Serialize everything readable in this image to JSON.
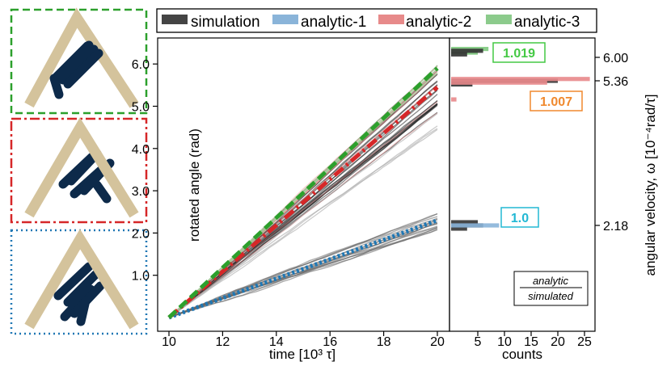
{
  "chart_data": [
    {
      "type": "line",
      "xlabel": "time [10³ τ]",
      "ylabel": "rotated angle (rad)",
      "xlim": [
        10,
        20
      ],
      "ylim": [
        -0.05,
        6.45
      ],
      "x_ticks": [
        "10",
        "12",
        "14",
        "16",
        "18",
        "20"
      ],
      "y_ticks": [
        "1.0",
        "2.0",
        "3.0",
        "4.0",
        "5.0",
        "6.0"
      ],
      "grid": false,
      "legend": {
        "placement": "top",
        "entries": [
          {
            "label": "simulation",
            "color": "#444444"
          },
          {
            "label": "analytic-1",
            "color": "#8ab4d9"
          },
          {
            "label": "analytic-2",
            "color": "#e78a8a"
          },
          {
            "label": "analytic-3",
            "color": "#8ccb8c"
          }
        ]
      },
      "series": [
        {
          "name": "analytic-1",
          "x": [
            10,
            20
          ],
          "y": [
            0,
            2.3
          ],
          "color": "#1f77b4",
          "style": "dotted"
        },
        {
          "name": "analytic-2",
          "x": [
            10,
            20
          ],
          "y": [
            0,
            5.45
          ],
          "color": "#d62728",
          "style": "dashdot"
        },
        {
          "name": "analytic-3",
          "x": [
            10,
            20
          ],
          "y": [
            0,
            5.9
          ],
          "color": "#2ca02c",
          "style": "dashed"
        }
      ]
    },
    {
      "type": "bar",
      "orientation": "horizontal",
      "xlabel": "counts",
      "ylabel": "angular velocity, ω [10⁻⁴rad/τ]",
      "xlim": [
        0,
        27
      ],
      "x_ticks": [
        "5",
        "10",
        "15",
        "20",
        "25"
      ],
      "right_ticks": [
        {
          "label": "6.00",
          "value": 6.0
        },
        {
          "label": "5.36",
          "value": 5.36
        },
        {
          "label": "2.18",
          "value": 2.18
        }
      ],
      "groups": [
        {
          "name": "analytic-3",
          "color": "#7dc97d",
          "bars": [
            {
              "omega": 6.06,
              "count": 7
            },
            {
              "omega": 5.98,
              "count": 5
            }
          ]
        },
        {
          "name": "simulation",
          "color": "#333333",
          "bars": [
            {
              "omega": 6.02,
              "count": 6
            },
            {
              "omega": 5.94,
              "count": 3
            },
            {
              "omega": 5.36,
              "count": 20
            },
            {
              "omega": 5.28,
              "count": 4
            },
            {
              "omega": 2.25,
              "count": 5
            },
            {
              "omega": 2.18,
              "count": 6
            },
            {
              "omega": 2.11,
              "count": 3
            }
          ]
        },
        {
          "name": "analytic-2",
          "color": "#e8888b",
          "bars": [
            {
              "omega": 5.4,
              "count": 26
            },
            {
              "omega": 5.32,
              "count": 18
            },
            {
              "omega": 4.95,
              "count": 1
            }
          ]
        },
        {
          "name": "analytic-1",
          "color": "#8ab4d9",
          "bars": [
            {
              "omega": 2.18,
              "count": 9
            }
          ]
        }
      ],
      "ratio_labels": [
        {
          "text": "1.019",
          "color": "#44c944"
        },
        {
          "text": "1.007",
          "color": "#f0892e"
        },
        {
          "text": "1.0",
          "color": "#22b8d4"
        }
      ],
      "annotation": {
        "numerator": "analytic",
        "denominator": "simulated"
      }
    }
  ]
}
